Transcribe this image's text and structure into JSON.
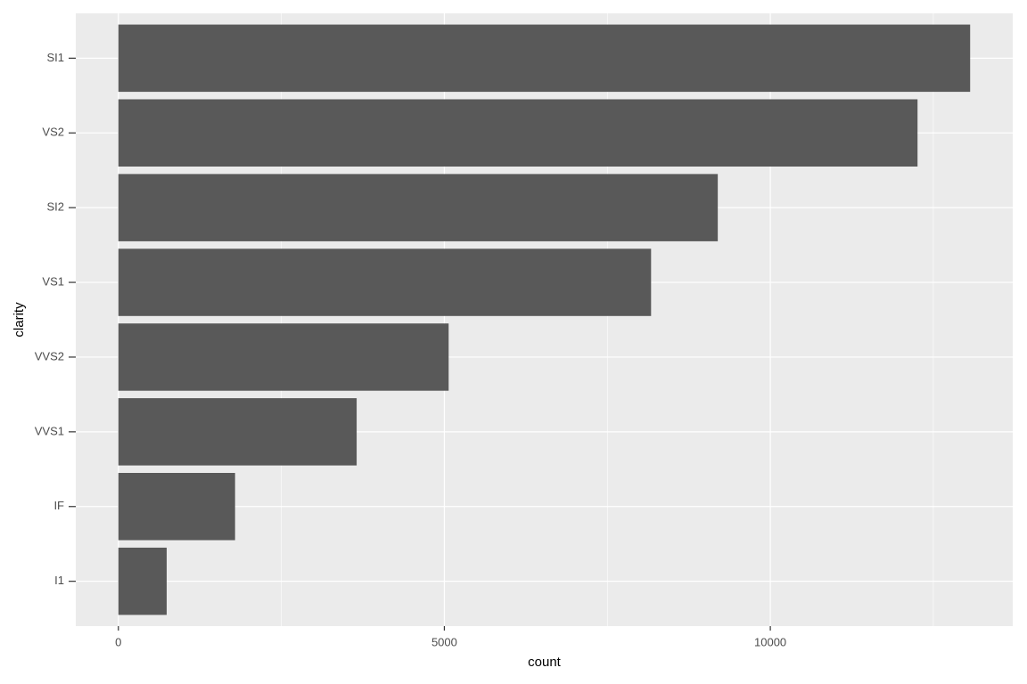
{
  "chart_data": {
    "type": "bar",
    "orientation": "horizontal",
    "x_label": "count",
    "y_label": "clarity",
    "categories": [
      "SI1",
      "VS2",
      "SI2",
      "VS1",
      "VVS2",
      "VVS1",
      "IF",
      "I1"
    ],
    "values": [
      13065,
      12258,
      9194,
      8171,
      5066,
      3655,
      1790,
      741
    ],
    "color": "#595959",
    "xlim": [
      -653.25,
      13718.25
    ],
    "xticks": [
      0,
      5000,
      10000
    ],
    "x_minor_ticks": [
      2500,
      7500,
      12500
    ],
    "grid": true
  }
}
